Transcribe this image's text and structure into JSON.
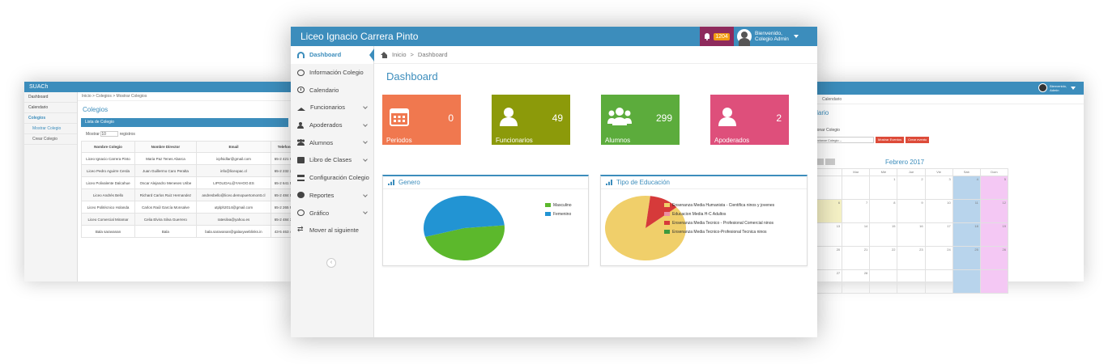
{
  "left_shot": {
    "app_title": "SUACh",
    "sidebar": [
      "Dashboard",
      "Calendario",
      "Colegios",
      "Mostrar Colegio",
      "Crear Colegio"
    ],
    "breadcrumb": "Inicio  >  Colegios  >  Mostrar Colegios",
    "page_title": "Colegios",
    "list_title": "Lista de Colegio",
    "show_label": "Mostrar",
    "show_value": "10",
    "records_label": "registros",
    "columns": [
      "Nombre Colegio",
      "Nombre Director",
      "Email",
      "Telefono"
    ],
    "rows": [
      [
        "Liceo Ignacio Carrera Pinto",
        "Maria Paz Tenes Abarca",
        "icpfsidlar@gmail.com",
        "65-2 421 918"
      ],
      [
        "Liceo Pedro Aguirre Cerda",
        "Juan Guillermo Caro Peralta",
        "info@liceopac.cl",
        "65-2 232 202"
      ],
      [
        "Liceo Polivalente Dalcahue",
        "Oscar Alejandro Meneses Uribe",
        "LIPOLIDAL@YAHOO.ES",
        "65-2 641 588"
      ],
      [
        "Liceo Andrés Bello",
        "Richard Carlos Ruiz Hernandez",
        "andresbello@liceo.demopuertomontt.cl",
        "65-2 484 554"
      ],
      [
        "Liceo Politécnico Holanda",
        "Carlos Raúl García Monsalve",
        "utplph2014@gmail.com",
        "65-2 265 980"
      ],
      [
        "Liceo Comercial Miramar",
        "Celia Elvira Silva Guerrero",
        "ratesilva@yahoo.es",
        "65-2 484 347"
      ],
      [
        "Bala saravanan",
        "Bala",
        "bala.saravanan@galaxyweblinks.in",
        "43-5 463 474"
      ]
    ]
  },
  "main": {
    "brand": "Liceo Ignacio Carrera Pinto",
    "notifications": "1204",
    "user_greeting": "Bienvenido,",
    "user_name": "Colegio Admin",
    "sidebar": [
      {
        "label": "Dashboard",
        "icon": "dashboard-icon",
        "chevron": false,
        "active": true
      },
      {
        "label": "Información Colegio",
        "icon": "globe-icon",
        "chevron": false
      },
      {
        "label": "Calendario",
        "icon": "clock-icon",
        "chevron": false
      },
      {
        "label": "Funcionarios",
        "icon": "graduation-cap-icon",
        "chevron": true
      },
      {
        "label": "Apoderados",
        "icon": "user-icon",
        "chevron": true
      },
      {
        "label": "Alumnos",
        "icon": "users-icon",
        "chevron": true
      },
      {
        "label": "Libro de Clases",
        "icon": "book-icon",
        "chevron": true
      },
      {
        "label": "Configuración Colegio",
        "icon": "bank-icon",
        "chevron": false
      },
      {
        "label": "Reportes",
        "icon": "pie-icon",
        "chevron": true
      },
      {
        "label": "Gráfico",
        "icon": "globe-icon",
        "chevron": true
      },
      {
        "label": "Mover al siguiente",
        "icon": "arrows-icon",
        "chevron": false
      }
    ],
    "breadcrumb_home": "Inicio",
    "breadcrumb_sep": ">",
    "breadcrumb_current": "Dashboard",
    "page_title": "Dashboard",
    "stats": [
      {
        "label": "Periodos",
        "value": "0",
        "color": "#f0784f",
        "icon": "calendar-icon"
      },
      {
        "label": "Funcionarios",
        "value": "49",
        "color": "#8c9a0a",
        "icon": "user-icon"
      },
      {
        "label": "Alumnos",
        "value": "299",
        "color": "#5cac3c",
        "icon": "users-icon"
      },
      {
        "label": "Apoderados",
        "value": "2",
        "color": "#de4f7b",
        "icon": "user-icon"
      }
    ],
    "chart_genero": {
      "title": "Genero",
      "type": "pie",
      "legend": [
        "Masculino",
        "Femenino"
      ],
      "colors": [
        "#5cb82c",
        "#2294d3"
      ],
      "values": [
        47,
        53
      ]
    },
    "chart_educacion": {
      "title": "Tipo de Educación",
      "type": "pie",
      "legend": [
        "Ensenanza Media Humanista - Cientifica ninos y jovenes",
        "Educacion Media H-C Adultos",
        "Ensenanza Media Tecnico - Profesional Comercial ninos",
        "Ensenanza Media Tecnico-Profesional Tecnica ninos"
      ],
      "colors": [
        "#f0cf6a",
        "#ec8fa3",
        "#d63a3a",
        "#3d9a3d"
      ],
      "values": [
        88,
        0,
        12,
        0
      ]
    }
  },
  "right_shot": {
    "user_greeting": "Bienvenido,",
    "user_name": "Admin",
    "breadcrumb": "Calendario",
    "page_title": "ndario",
    "select_label": "cionar Colegio",
    "select_value": "ccionar Colegio --",
    "btn_show": "Mostrar Eventos",
    "btn_create": "Crear evento",
    "calendar_title": "Febrero 2017",
    "day_headers": [
      "",
      "Mar",
      "Mié",
      "Jue",
      "Vie",
      "Sáb",
      "Dom"
    ],
    "weeks": [
      [
        "",
        "",
        "1",
        "2",
        "3",
        "4",
        "5"
      ],
      [
        "6",
        "7",
        "8",
        "9",
        "10",
        "11",
        "12"
      ],
      [
        "13",
        "14",
        "15",
        "16",
        "17",
        "18",
        "19"
      ],
      [
        "20",
        "21",
        "22",
        "23",
        "24",
        "25",
        "26"
      ],
      [
        "27",
        "28",
        "",
        "",
        "",
        "",
        ""
      ]
    ]
  }
}
